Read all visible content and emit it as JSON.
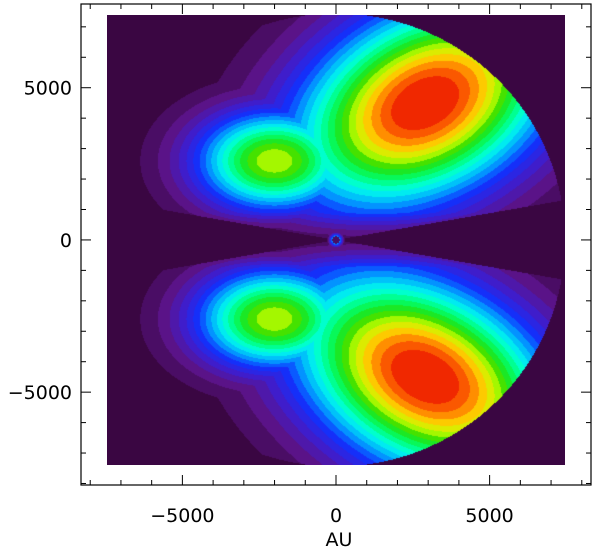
{
  "chart_data": {
    "type": "heatmap",
    "title": "",
    "xlabel": "AU",
    "ylabel": "",
    "xlim": [
      -8300,
      8300
    ],
    "ylim": [
      -8050,
      7750
    ],
    "x_ticks": [
      -5000,
      0,
      5000
    ],
    "x_tick_labels": [
      "−5000",
      "0",
      "5000"
    ],
    "y_ticks": [
      -5000,
      0,
      5000
    ],
    "y_tick_labels": [
      "−5000",
      "0",
      "5000"
    ],
    "x_minor_step": 1000,
    "y_minor_step": 1000,
    "grid": false,
    "legend": "none",
    "colormap": "rainbow",
    "contour_levels": 22,
    "field": {
      "domain_extent": [
        -7450,
        7450,
        -7400,
        7400
      ],
      "disk_radius": 7450,
      "lobes": [
        {
          "x": 2900,
          "y": 4500,
          "peak": 1.0
        },
        {
          "x": 2900,
          "y": -4550,
          "peak": 1.0
        }
      ],
      "midplane_wedge_half_angle_deg": 10,
      "central_source": {
        "x": 0,
        "y": 0
      }
    },
    "background_color": "#3a0642"
  }
}
